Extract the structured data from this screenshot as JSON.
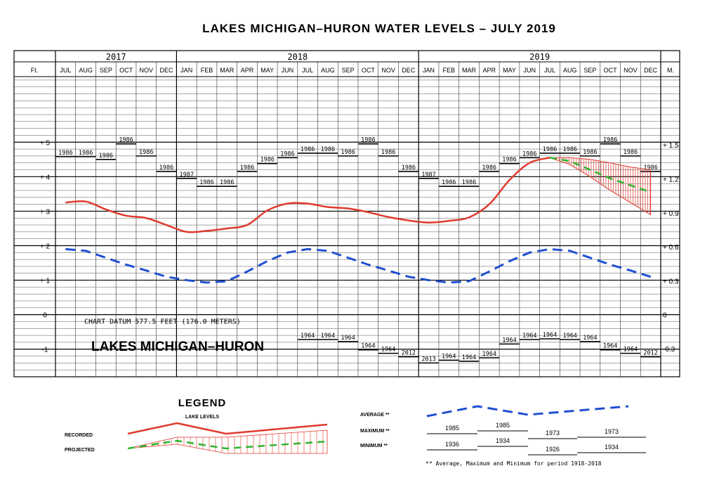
{
  "chart_data": {
    "type": "line",
    "title": "LAKES MICHIGAN–HURON WATER LEVELS – JULY 2019",
    "years": [
      {
        "label": "2017",
        "months": [
          "JUL",
          "AUG",
          "SEP",
          "OCT",
          "NOV",
          "DEC"
        ]
      },
      {
        "label": "2018",
        "months": [
          "JAN",
          "FEB",
          "MAR",
          "APR",
          "MAY",
          "JUN",
          "JUL",
          "AUG",
          "SEP",
          "OCT",
          "NOV",
          "DEC"
        ]
      },
      {
        "label": "2019",
        "months": [
          "JAN",
          "FEB",
          "MAR",
          "APR",
          "MAY",
          "JUN",
          "JUL",
          "AUG",
          "SEP",
          "OCT",
          "NOV",
          "DEC"
        ]
      }
    ],
    "left_axis_label": "Ft.",
    "right_axis_label": "M.",
    "ylim": [
      -1.8,
      6.9
    ],
    "left_ticks": [
      {
        "v": 5,
        "label": "+ 5"
      },
      {
        "v": 4,
        "label": "+ 4"
      },
      {
        "v": 3,
        "label": "+ 3"
      },
      {
        "v": 2,
        "label": "+ 2"
      },
      {
        "v": 1,
        "label": "+ 1"
      },
      {
        "v": 0,
        "label": "0"
      },
      {
        "v": -1,
        "label": "-1"
      }
    ],
    "right_ticks": [
      {
        "v": 4.92,
        "label": "+ 1.5"
      },
      {
        "v": 3.94,
        "label": "+ 1.2"
      },
      {
        "v": 2.95,
        "label": "+ 0.9"
      },
      {
        "v": 1.97,
        "label": "+ 0.6"
      },
      {
        "v": 0.98,
        "label": "+ 0.3"
      },
      {
        "v": 0,
        "label": "0"
      },
      {
        "v": -0.98,
        "label": "-0.3"
      }
    ],
    "chart_datum": "CHART DATUM   577.5 FEET (176.0 METERS)",
    "lake_name": "LAKES MICHIGAN–HURON",
    "recorded": {
      "name": "RECORDED",
      "color": "#e03a2e",
      "values": [
        3.25,
        3.28,
        3.05,
        2.87,
        2.8,
        2.6,
        2.4,
        2.43,
        2.5,
        2.6,
        3.02,
        3.22,
        3.22,
        3.12,
        3.08,
        2.97,
        2.83,
        2.73,
        2.67,
        2.72,
        2.82,
        3.2,
        3.9,
        4.4,
        4.55
      ]
    },
    "projected": {
      "name": "PROJECTED",
      "color": "#2db52d",
      "values": [
        4.55,
        4.45,
        4.2,
        3.95,
        3.75,
        3.55
      ]
    },
    "projected_high": [
      4.55,
      4.55,
      4.5,
      4.4,
      4.28,
      4.2
    ],
    "projected_low": [
      4.55,
      4.35,
      4.0,
      3.6,
      3.25,
      2.9
    ],
    "average": {
      "name": "AVERAGE **",
      "color": "#1f4fd1",
      "values": [
        1.9,
        1.85,
        1.65,
        1.45,
        1.28,
        1.1,
        1.0,
        0.93,
        0.97,
        1.25,
        1.55,
        1.8,
        1.9,
        1.85,
        1.65,
        1.45,
        1.28,
        1.1,
        1.0,
        0.93,
        0.97,
        1.25,
        1.55,
        1.8,
        1.9,
        1.85,
        1.65,
        1.45,
        1.28,
        1.1
      ]
    },
    "maximum": {
      "name": "MAXIMUM **",
      "values": [
        4.58,
        4.58,
        4.5,
        4.95,
        4.6,
        4.15,
        3.95,
        3.72,
        3.72,
        4.15,
        4.38,
        4.55,
        4.68,
        4.68,
        4.6,
        4.95,
        4.6,
        4.15,
        3.95,
        3.72,
        3.72,
        4.15,
        4.38,
        4.55,
        4.68,
        4.68,
        4.6,
        4.95,
        4.6,
        4.15
      ],
      "labels": [
        "1986",
        "1986",
        "1986",
        "1986",
        "1986",
        "1986",
        "1987",
        "1986",
        "1986",
        "1986",
        "1986",
        "1986",
        "1986",
        "1986",
        "1986",
        "1986",
        "1986",
        "1986",
        "1987",
        "1986",
        "1986",
        "1986",
        "1986",
        "1986",
        "1986",
        "1986",
        "1986",
        "1986",
        "1986",
        "1986"
      ]
    },
    "minimum": {
      "name": "MINIMUM **",
      "values": [
        null,
        null,
        null,
        null,
        null,
        null,
        null,
        null,
        null,
        null,
        null,
        null,
        -0.72,
        -0.72,
        -0.78,
        -1.02,
        -1.12,
        -1.22,
        -1.4,
        -1.32,
        -1.35,
        -1.25,
        -0.85,
        -0.72,
        -0.7,
        -0.72,
        -0.78,
        -1.02,
        -1.12,
        -1.22
      ],
      "labels": [
        null,
        null,
        null,
        null,
        null,
        null,
        null,
        null,
        null,
        null,
        null,
        null,
        "1964",
        "1964",
        "1964",
        "1964",
        "1964",
        "2012",
        "2013",
        "1964",
        "1964",
        "1964",
        "1964",
        "1964",
        "1964",
        "1964",
        "1964",
        "1964",
        "1964",
        "2012"
      ]
    }
  },
  "legend": {
    "title": "LEGEND",
    "lake_levels": "LAKE LEVELS",
    "recorded": "RECORDED",
    "projected": "PROJECTED",
    "average": "AVERAGE **",
    "maximum": "MAXIMUM **",
    "minimum": "MINIMUM **",
    "max_years": [
      "1985",
      "1985",
      "1973",
      "1973"
    ],
    "min_years": [
      "1936",
      "1934",
      "1926",
      "1934"
    ],
    "footnote": "** Average, Maximum and Minimum for period 1918-2018"
  }
}
